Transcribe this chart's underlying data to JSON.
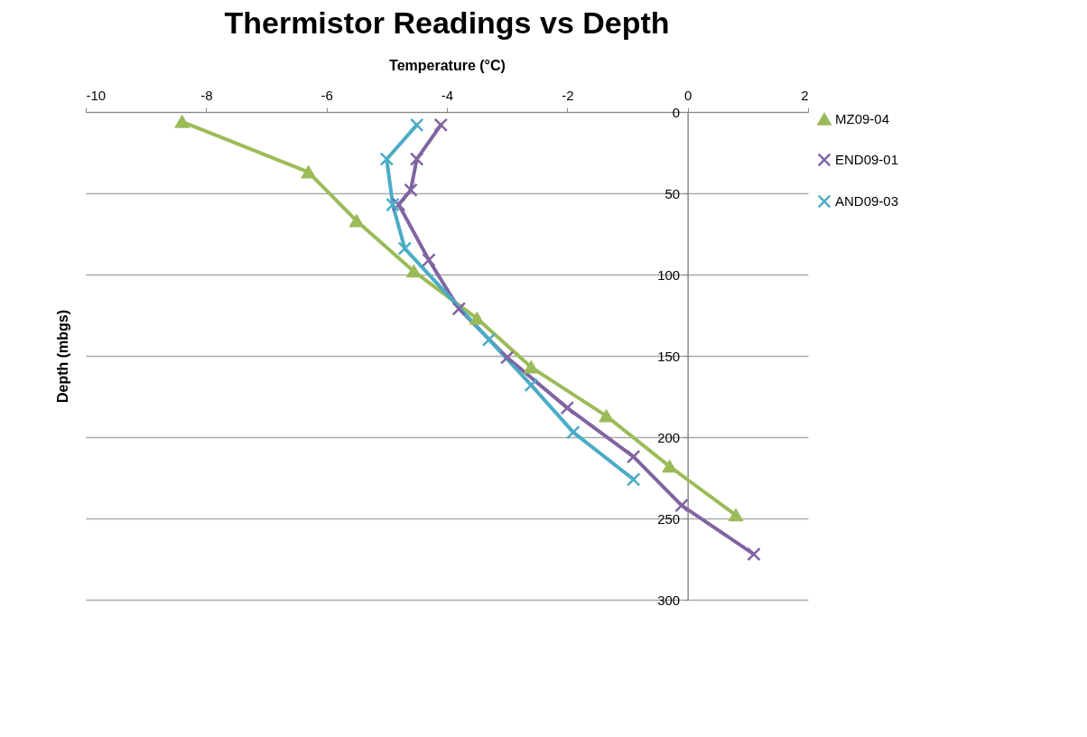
{
  "chart_data": {
    "type": "line",
    "title": "Thermistor Readings vs Depth",
    "xlabel": "Temperature (°C)",
    "ylabel": "Depth (mbgs)",
    "xlim": [
      -10,
      2
    ],
    "xticks": [
      -10,
      -8,
      -6,
      -4,
      -2,
      0,
      2
    ],
    "ylim": [
      300,
      0
    ],
    "yticks": [
      0,
      50,
      100,
      150,
      200,
      250,
      300
    ],
    "grid": "y",
    "legend": "right",
    "series": [
      {
        "name": "MZ09-04",
        "color": "#9bbb59",
        "marker": "triangle",
        "x": [
          -8.4,
          -6.3,
          -5.5,
          -4.55,
          -3.5,
          -2.6,
          -1.35,
          -0.3,
          0.8
        ],
        "values": [
          6,
          37,
          67,
          98,
          127,
          157,
          187,
          218,
          248
        ]
      },
      {
        "name": "END09-01",
        "color": "#8064a2",
        "marker": "cross",
        "x": [
          -4.1,
          -4.5,
          -4.6,
          -4.8,
          -4.3,
          -3.8,
          -3.0,
          -2.0,
          -0.9,
          -0.1,
          1.1
        ],
        "values": [
          8,
          29,
          48,
          57,
          91,
          121,
          151,
          182,
          212,
          242,
          272
        ]
      },
      {
        "name": "AND09-03",
        "color": "#4bacc6",
        "marker": "cross",
        "x": [
          -4.5,
          -5.0,
          -4.9,
          -4.7,
          -3.3,
          -2.6,
          -1.9,
          -0.9
        ],
        "values": [
          8,
          29,
          57,
          84,
          140,
          168,
          197,
          226
        ]
      }
    ]
  }
}
